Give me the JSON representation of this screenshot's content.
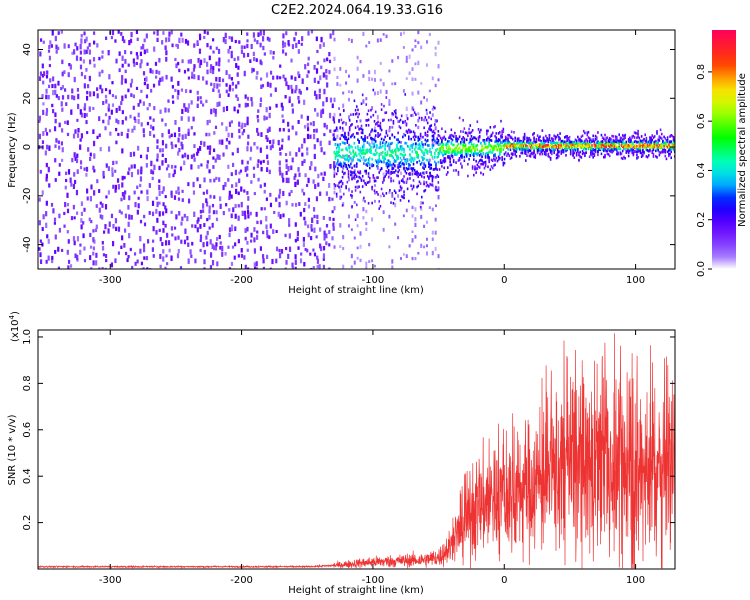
{
  "title": "C2E2.2024.064.19.33.G16",
  "colors": {
    "snr_line": "#ee3333",
    "point_low": "#7a33ff",
    "point_faint": "#c9b5f5"
  },
  "chart_data": [
    {
      "type": "heatmap",
      "title": "C2E2.2024.064.19.33.G16",
      "xlabel": "Height of straight line (km)",
      "ylabel": "Frequency (Hz)",
      "xlim": [
        -355,
        130
      ],
      "ylim": [
        -50,
        48
      ],
      "x_ticks": [
        -300,
        -200,
        -100,
        0,
        100
      ],
      "y_ticks": [
        -40,
        -20,
        0,
        20,
        40
      ],
      "colorbar": {
        "label": "Normalized spectral amplitude",
        "range": [
          0.0,
          0.97
        ],
        "ticks": [
          "0.0",
          "0.2",
          "0.4",
          "0.6",
          "0.8"
        ],
        "tick_values": [
          0.0,
          0.2,
          0.4,
          0.6,
          0.8
        ],
        "colormap": "rainbow"
      },
      "regions": [
        {
          "x_range": [
            -355,
            -130
          ],
          "freq_range": [
            -50,
            48
          ],
          "amplitude": 0.05
        },
        {
          "x_range": [
            -130,
            -50
          ],
          "freq_range": [
            -50,
            48
          ],
          "amplitude": 0.02
        },
        {
          "x_range": [
            -130,
            -50
          ],
          "freq_range": [
            -12,
            12
          ],
          "amplitude": 0.25
        },
        {
          "x_range": [
            -50,
            0
          ],
          "freq_range": [
            -6,
            6
          ],
          "amplitude": 0.45
        },
        {
          "x_range": [
            0,
            130
          ],
          "freq_range": [
            -2,
            3
          ],
          "amplitude": 0.85
        }
      ]
    },
    {
      "type": "line",
      "title": "",
      "xlabel": "Height of straight line (km)",
      "ylabel": "SNR (10 * v/v)",
      "y_multiplier": "(x10",
      "y_multiplier_exp": "4",
      "y_multiplier_close": ")",
      "xlim": [
        -355,
        130
      ],
      "ylim": [
        0,
        1.03
      ],
      "x_ticks": [
        -300,
        -200,
        -100,
        0,
        100
      ],
      "y_ticks": [
        0.2,
        0.4,
        0.6,
        0.8,
        1.0
      ],
      "series": [
        {
          "x": [
            -355,
            -300,
            -250,
            -200,
            -150,
            -130,
            -120,
            -100,
            -80,
            -60,
            -50,
            -40,
            -30,
            -20,
            -10,
            0,
            10,
            20,
            30,
            40,
            50,
            60,
            70,
            80,
            90,
            100,
            110,
            120,
            130
          ],
          "y": [
            0.01,
            0.01,
            0.01,
            0.01,
            0.01,
            0.015,
            0.02,
            0.03,
            0.035,
            0.04,
            0.05,
            0.1,
            0.2,
            0.27,
            0.3,
            0.3,
            0.33,
            0.36,
            0.38,
            0.42,
            0.45,
            0.44,
            0.43,
            0.45,
            0.43,
            0.4,
            0.45,
            0.42,
            0.4
          ]
        }
      ]
    }
  ]
}
